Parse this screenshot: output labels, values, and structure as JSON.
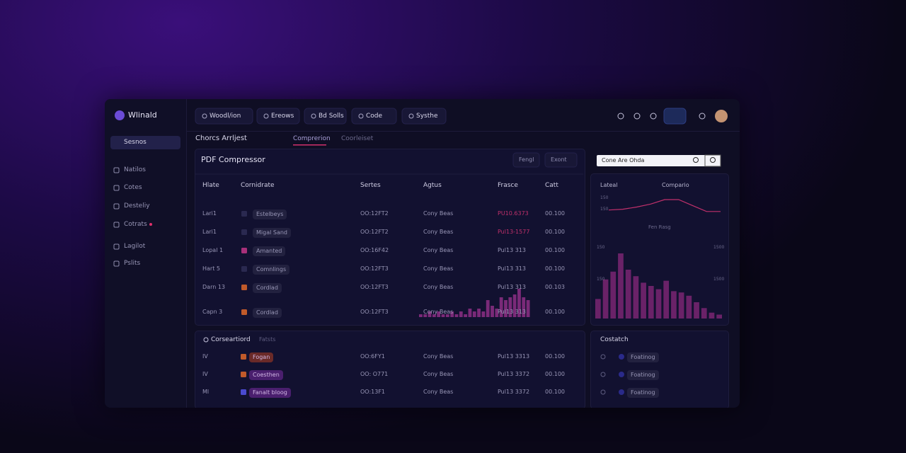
{
  "app": {
    "name": "Wlinald"
  },
  "nav": [
    "Woodl/ion",
    "Ereows",
    "Bd Solls",
    "Code",
    "Systhe"
  ],
  "sidebar": {
    "select": "Sesnos",
    "items": [
      "Natilos",
      "Cotes",
      "Desteliy",
      "Cotrats",
      "Lagilot",
      "Pslits"
    ]
  },
  "breadcrumb": "Chorcs Arrljest",
  "tabs": [
    "Comprerion",
    "Coorleiset"
  ],
  "panel": {
    "title": "PDF Compressor",
    "buttons": [
      "Fengl",
      "Exont"
    ]
  },
  "table": {
    "headers": [
      "Hlate",
      "Cornidrate",
      "Sertes",
      "Agtus",
      "Frasce",
      "Catt"
    ],
    "rows": [
      [
        "Lari1",
        "Estelbeys",
        "OO:12FT2",
        "Cony Beas",
        "PU10.6373",
        "00.100"
      ],
      [
        "Lari1",
        "Migal Sand",
        "OO:12FT2",
        "Cony Beas",
        "Pul13-1577",
        "00.100"
      ],
      [
        "Lopal 1",
        "Amanted",
        "OO:16F42",
        "Cony Beas",
        "Pul13 313",
        "00.100"
      ],
      [
        "Hart 5",
        "Comnlings",
        "OO:12FT3",
        "Cony Beas",
        "Pul13 313",
        "00.100"
      ],
      [
        "Darn 13",
        "Cordlad",
        "OO:12FT3",
        "Cony Beas",
        "Pul13 313",
        "00.103"
      ],
      [
        "Capn 3",
        "Cordlad",
        "OO:12FT3",
        "Cony Beas",
        "Pul13 313",
        "00.100"
      ]
    ]
  },
  "table_chart": {
    "type": "bar",
    "color": "#7a2a78",
    "ylim": [
      0,
      10
    ],
    "values": [
      1,
      1,
      2,
      1,
      2,
      1,
      1,
      2,
      1,
      2,
      1,
      3,
      2,
      3,
      2,
      6,
      4,
      3,
      7,
      6,
      7,
      8,
      10,
      7,
      6
    ]
  },
  "search": {
    "placeholder": "Cone Are Ohda"
  },
  "side_chart": {
    "headers": [
      "Lateal",
      "Compario"
    ],
    "line": {
      "type": "line",
      "color": "#c0306b",
      "ylim": [
        0,
        10
      ],
      "labels": [
        "150",
        "150"
      ],
      "values": [
        3,
        3.5,
        5,
        7,
        10,
        10,
        6,
        2,
        2
      ],
      "caption": "Fen Rasg"
    },
    "bars": {
      "type": "bar",
      "color": "#6a2268",
      "ylim": [
        0,
        100
      ],
      "labels": [
        "150",
        "1500",
        "150",
        "1500"
      ],
      "values": [
        30,
        60,
        72,
        100,
        75,
        65,
        55,
        50,
        45,
        58,
        42,
        40,
        35,
        25,
        16,
        9,
        6
      ]
    }
  },
  "bottom": {
    "title": "Corseartiord",
    "filter": "Fatsts",
    "rows": [
      [
        "IV",
        "Fogan",
        "OO:6FY1",
        "Cony Beas",
        "Pul13 3313",
        "00.100"
      ],
      [
        "IV",
        "Coesthen",
        "OO: O771",
        "Cony Beas",
        "Pul13 3372",
        "00.100"
      ],
      [
        "Ml",
        "Fanalt bloog",
        "OO:13F1",
        "Cony Beas",
        "Pul13 3372",
        "00.100"
      ]
    ]
  },
  "side_list": {
    "title": "Costatch",
    "items": [
      "Foatinog",
      "Foatinog",
      "Foatinog"
    ]
  }
}
